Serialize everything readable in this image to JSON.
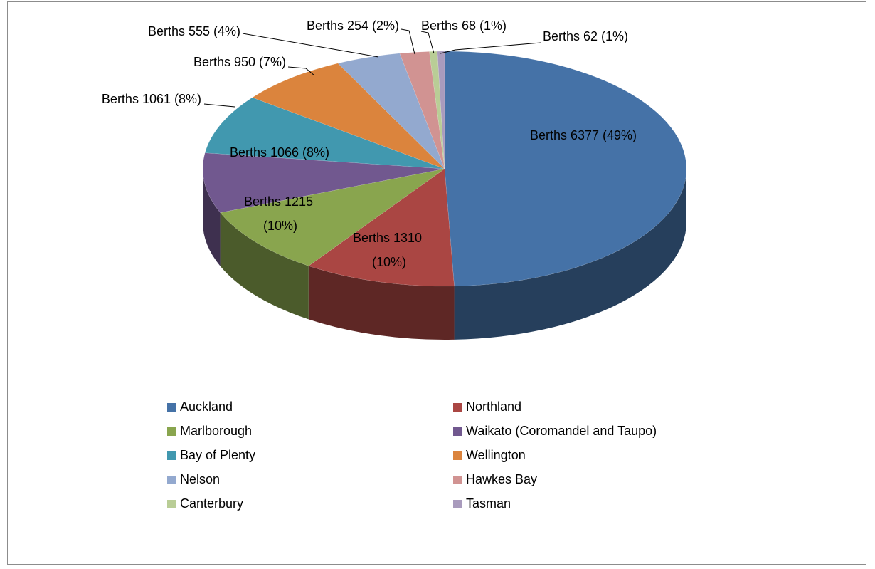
{
  "chart_data": {
    "type": "pie",
    "categories": [
      "Auckland",
      "Northland",
      "Marlborough",
      "Waikato (Coromandel and Taupo)",
      "Bay of Plenty",
      "Wellington",
      "Nelson",
      "Hawkes Bay",
      "Canterbury",
      "Tasman"
    ],
    "values": [
      6377,
      1310,
      1215,
      1066,
      1061,
      950,
      555,
      254,
      68,
      62
    ],
    "value_labels": [
      "Berths 6377 (49%)",
      "Berths 1310 (10%)",
      "Berths 1215 (10%)",
      "Berths 1066 (8%)",
      "Berths 1061 (8%)",
      "Berths 950 (7%)",
      "Berths 555 (4%)",
      "Berths 254 (2%)",
      "Berths 68 (1%)",
      "Berths 62 (1%)"
    ],
    "colors": [
      "#4572a7",
      "#aa4643",
      "#89a54e",
      "#71588f",
      "#4198af",
      "#db843d",
      "#93a9cf",
      "#d19392",
      "#b9cd96",
      "#a99bbd"
    ],
    "legend": "bottom"
  }
}
